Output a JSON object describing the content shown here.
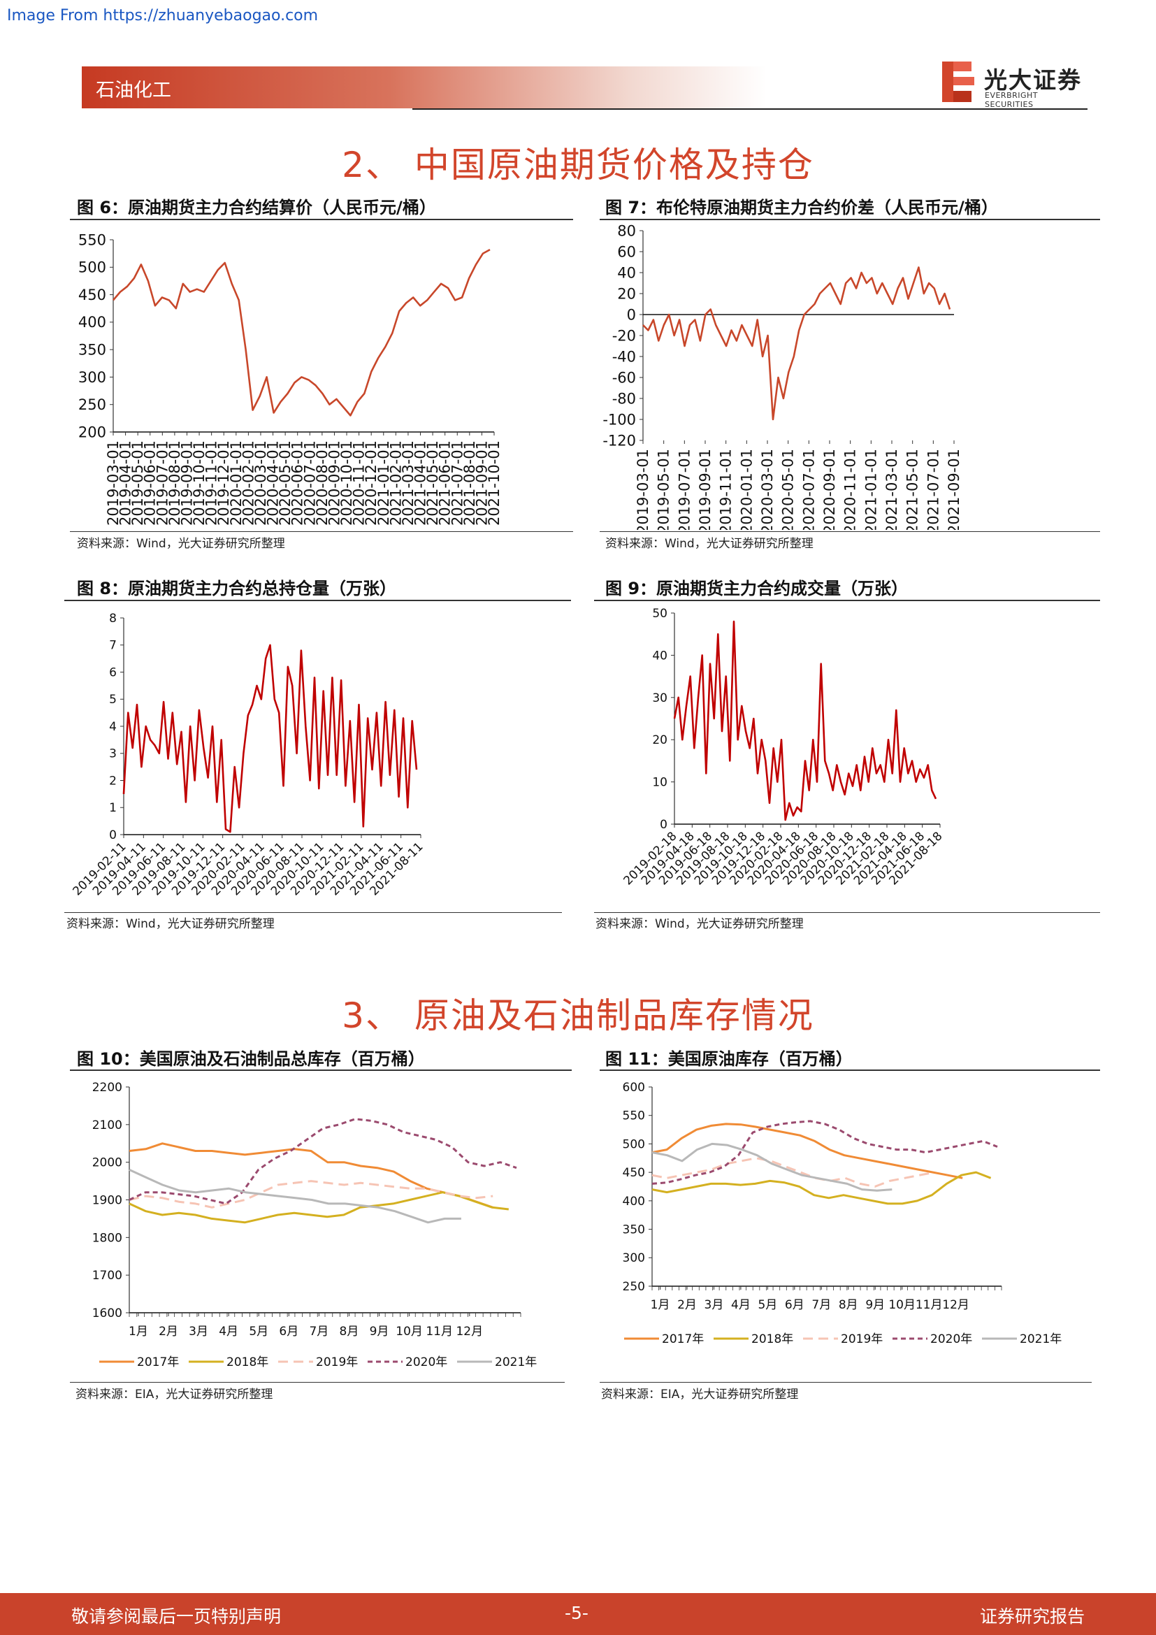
{
  "source_note": "Image From https://zhuanyebaogao.com",
  "header": {
    "tag": "石油化工",
    "logo_cn": "光大证券",
    "logo_en": "EVERBRIGHT SECURITIES"
  },
  "sections": {
    "s2": "2、 中国原油期货价格及持仓",
    "s3": "3、 原油及石油制品库存情况"
  },
  "figures": {
    "f6": {
      "title": "图 6：原油期货主力合约结算价（人民币元/桶）",
      "source": "资料来源：Wind，光大证券研究所整理"
    },
    "f7": {
      "title": "图 7：布伦特原油期货主力合约价差（人民币元/桶）",
      "source": "资料来源：Wind，光大证券研究所整理"
    },
    "f8": {
      "title": "图 8：原油期货主力合约总持仓量（万张）",
      "source": "资料来源：Wind，光大证券研究所整理"
    },
    "f9": {
      "title": "图 9：原油期货主力合约成交量（万张）",
      "source": "资料来源：Wind，光大证券研究所整理"
    },
    "f10": {
      "title": "图 10：美国原油及石油制品总库存（百万桶）",
      "source": "资料来源：EIA，光大证券研究所整理"
    },
    "f11": {
      "title": "图 11：美国原油库存（百万桶）",
      "source": "资料来源：EIA，光大证券研究所整理"
    }
  },
  "colors": {
    "accent": "#d2452b",
    "line_orange": "#c8472a",
    "line_red": "#c00000",
    "y2017": "#f08b35",
    "y2018": "#d4b020",
    "y2019": "#f6c4b4",
    "y2020": "#9b4a6e",
    "y2021": "#b8b8b8"
  },
  "chart_data": [
    {
      "id": "f6",
      "type": "line",
      "series_name": "",
      "ylim": [
        200,
        550
      ],
      "yticks": [
        200,
        250,
        300,
        350,
        400,
        450,
        500,
        550
      ],
      "x_tick_labels": [
        "2019-03-01",
        "2019-04-01",
        "2019-05-01",
        "2019-06-01",
        "2019-07-01",
        "2019-08-01",
        "2019-09-01",
        "2019-10-01",
        "2019-11-01",
        "2019-12-01",
        "2020-01-01",
        "2020-02-01",
        "2020-03-01",
        "2020-04-01",
        "2020-05-01",
        "2020-06-01",
        "2020-07-01",
        "2020-08-01",
        "2020-09-01",
        "2020-10-01",
        "2020-11-01",
        "2020-12-01",
        "2021-01-01",
        "2021-02-01",
        "2021-03-01",
        "2021-04-01",
        "2021-05-01",
        "2021-06-01",
        "2021-07-01",
        "2021-08-01",
        "2021-09-01",
        "2021-10-01"
      ],
      "values": [
        440,
        455,
        465,
        480,
        505,
        475,
        430,
        445,
        440,
        425,
        470,
        455,
        460,
        455,
        475,
        495,
        508,
        470,
        440,
        350,
        240,
        265,
        300,
        235,
        255,
        270,
        290,
        300,
        295,
        285,
        270,
        250,
        260,
        245,
        230,
        255,
        270,
        310,
        335,
        355,
        380,
        420,
        435,
        445,
        430,
        440,
        455,
        470,
        462,
        440,
        445,
        480,
        505,
        525,
        532
      ]
    },
    {
      "id": "f7",
      "type": "line",
      "series_name": "",
      "ylim": [
        -120,
        80
      ],
      "yticks": [
        -120,
        -100,
        -80,
        -60,
        -40,
        -20,
        0,
        20,
        40,
        60,
        80
      ],
      "x_tick_labels": [
        "2019-03-01",
        "2019-05-01",
        "2019-07-01",
        "2019-09-01",
        "2019-11-01",
        "2020-01-01",
        "2020-03-01",
        "2020-05-01",
        "2020-07-01",
        "2020-09-01",
        "2020-11-01",
        "2021-01-01",
        "2021-03-01",
        "2021-05-01",
        "2021-07-01",
        "2021-09-01"
      ],
      "values": [
        -10,
        -15,
        -5,
        -25,
        -10,
        0,
        -20,
        -5,
        -30,
        -10,
        -5,
        -25,
        0,
        5,
        -10,
        -20,
        -30,
        -15,
        -25,
        -10,
        -20,
        -30,
        -5,
        -40,
        -20,
        -100,
        -60,
        -80,
        -55,
        -40,
        -15,
        0,
        5,
        10,
        20,
        25,
        30,
        20,
        10,
        30,
        35,
        25,
        40,
        30,
        35,
        20,
        30,
        20,
        10,
        25,
        35,
        15,
        30,
        45,
        20,
        30,
        25,
        10,
        20,
        5
      ]
    },
    {
      "id": "f8",
      "type": "line",
      "series_name": "",
      "ylim": [
        0,
        8
      ],
      "yticks": [
        0,
        1,
        2,
        3,
        4,
        5,
        6,
        7,
        8
      ],
      "x_tick_labels": [
        "2019-02-11",
        "2019-04-11",
        "2019-06-11",
        "2019-08-11",
        "2019-10-11",
        "2019-12-11",
        "2020-02-11",
        "2020-04-11",
        "2020-06-11",
        "2020-08-11",
        "2020-10-11",
        "2020-12-11",
        "2021-02-11",
        "2021-04-11",
        "2021-06-11",
        "2021-08-11"
      ],
      "values": [
        1.5,
        4.5,
        3.2,
        4.8,
        2.5,
        4.0,
        3.5,
        3.3,
        3.0,
        4.9,
        2.8,
        4.5,
        2.6,
        3.8,
        1.2,
        4.0,
        2.0,
        4.6,
        3.2,
        2.1,
        4.0,
        1.2,
        3.5,
        0.2,
        0.1,
        2.5,
        1.0,
        3.0,
        4.4,
        4.8,
        5.5,
        5.0,
        6.5,
        7.0,
        5.0,
        4.5,
        1.8,
        6.2,
        5.5,
        3.0,
        6.8,
        4.0,
        2.0,
        5.8,
        1.7,
        5.3,
        2.2,
        5.8,
        2.2,
        5.7,
        1.8,
        4.2,
        1.2,
        4.8,
        0.3,
        4.3,
        2.4,
        4.5,
        1.8,
        4.9,
        2.2,
        4.6,
        1.4,
        4.3,
        1.0,
        4.2,
        2.4
      ]
    },
    {
      "id": "f9",
      "type": "line",
      "series_name": "",
      "ylim": [
        0,
        50
      ],
      "yticks": [
        0,
        10,
        20,
        30,
        40,
        50
      ],
      "x_tick_labels": [
        "2019-02-18",
        "2019-04-18",
        "2019-06-18",
        "2019-08-18",
        "2019-10-18",
        "2019-12-18",
        "2020-02-18",
        "2020-04-18",
        "2020-06-18",
        "2020-08-18",
        "2020-10-18",
        "2020-12-18",
        "2021-02-18",
        "2021-04-18",
        "2021-06-18",
        "2021-08-18"
      ],
      "values": [
        25,
        30,
        20,
        28,
        35,
        18,
        30,
        40,
        12,
        38,
        25,
        45,
        22,
        35,
        15,
        48,
        20,
        28,
        22,
        18,
        25,
        12,
        20,
        15,
        5,
        18,
        10,
        20,
        1,
        5,
        2,
        4,
        3,
        15,
        8,
        20,
        10,
        38,
        15,
        12,
        8,
        14,
        10,
        7,
        12,
        9,
        14,
        8,
        16,
        10,
        18,
        12,
        14,
        10,
        20,
        12,
        27,
        10,
        18,
        12,
        15,
        10,
        13,
        11,
        14,
        8,
        6
      ]
    },
    {
      "id": "f10",
      "type": "line",
      "ylim": [
        1600,
        2200
      ],
      "yticks": [
        1600,
        1700,
        1800,
        1900,
        2000,
        2100,
        2200
      ],
      "x_tick_labels": [
        "1月",
        "2月",
        "3月",
        "4月",
        "5月",
        "6月",
        "7月",
        "8月",
        "9月",
        "10月",
        "11月",
        "12月"
      ],
      "series": [
        {
          "name": "2017年",
          "values": [
            2030,
            2035,
            2050,
            2040,
            2030,
            2030,
            2025,
            2020,
            2025,
            2030,
            2035,
            2030,
            2000,
            2000,
            1990,
            1985,
            1975,
            1950,
            1930,
            1920,
            1910,
            1895,
            1880
          ]
        },
        {
          "name": "2018年",
          "values": [
            1890,
            1870,
            1860,
            1865,
            1860,
            1850,
            1845,
            1840,
            1850,
            1860,
            1865,
            1860,
            1855,
            1860,
            1880,
            1885,
            1890,
            1900,
            1910,
            1920,
            1910,
            1895,
            1880,
            1875
          ]
        },
        {
          "name": "2019年",
          "values": [
            1900,
            1910,
            1905,
            1895,
            1890,
            1880,
            1890,
            1900,
            1920,
            1940,
            1945,
            1950,
            1945,
            1940,
            1945,
            1940,
            1935,
            1930,
            1930,
            1920,
            1910,
            1905,
            1910
          ]
        },
        {
          "name": "2020年",
          "values": [
            1900,
            1920,
            1920,
            1915,
            1910,
            1900,
            1890,
            1920,
            1980,
            2010,
            2030,
            2060,
            2090,
            2100,
            2115,
            2110,
            2100,
            2080,
            2070,
            2060,
            2040,
            2000,
            1990,
            2000,
            1985
          ]
        },
        {
          "name": "2021年",
          "values": [
            1980,
            1960,
            1940,
            1925,
            1920,
            1925,
            1930,
            1920,
            1915,
            1910,
            1905,
            1900,
            1890,
            1890,
            1885,
            1880,
            1870,
            1855,
            1840,
            1850,
            1850
          ]
        }
      ]
    },
    {
      "id": "f11",
      "type": "line",
      "ylim": [
        250,
        600
      ],
      "yticks": [
        250,
        300,
        350,
        400,
        450,
        500,
        550,
        600
      ],
      "x_tick_labels": [
        "1月",
        "2月",
        "3月",
        "4月",
        "5月",
        "6月",
        "7月",
        "8月",
        "9月",
        "10月",
        "11月",
        "12月"
      ],
      "series": [
        {
          "name": "2017年",
          "values": [
            485,
            490,
            510,
            525,
            532,
            535,
            534,
            530,
            525,
            520,
            515,
            505,
            490,
            480,
            475,
            470,
            465,
            460,
            455,
            450,
            445,
            440
          ]
        },
        {
          "name": "2018年",
          "values": [
            420,
            415,
            420,
            425,
            430,
            430,
            428,
            430,
            435,
            432,
            425,
            410,
            405,
            410,
            405,
            400,
            395,
            395,
            400,
            410,
            430,
            445,
            450,
            440
          ]
        },
        {
          "name": "2019年",
          "values": [
            445,
            440,
            445,
            450,
            455,
            465,
            470,
            475,
            470,
            460,
            450,
            440,
            435,
            440,
            430,
            425,
            435,
            440,
            445,
            450
          ]
        },
        {
          "name": "2020年",
          "values": [
            430,
            432,
            438,
            445,
            450,
            460,
            480,
            520,
            530,
            535,
            538,
            540,
            535,
            525,
            510,
            500,
            495,
            490,
            490,
            485,
            490,
            495,
            500,
            505,
            495
          ]
        },
        {
          "name": "2021年",
          "values": [
            485,
            480,
            470,
            490,
            500,
            498,
            490,
            480,
            465,
            455,
            445,
            440,
            435,
            430,
            420,
            418,
            420
          ]
        }
      ]
    }
  ],
  "footer": {
    "left": "敬请参阅最后一页特别声明",
    "center": "-5-",
    "right": "证券研究报告"
  }
}
